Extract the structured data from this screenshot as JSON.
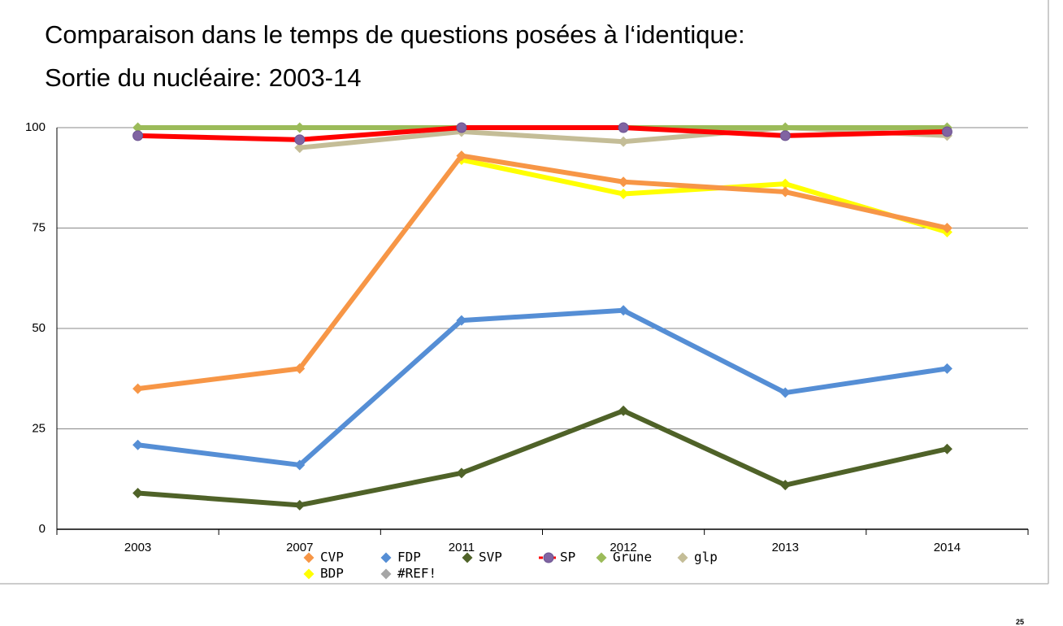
{
  "title": "Comparaison dans le temps  de questions posées à l‘identique:",
  "subtitle": "Sortie du nucléaire: 2003-14",
  "page_number": "25",
  "chart_data": {
    "type": "line",
    "categories": [
      "2003",
      "2007",
      "2011",
      "2012",
      "2013",
      "2014"
    ],
    "ylim": [
      0,
      100
    ],
    "yticks": [
      0,
      25,
      50,
      75,
      100
    ],
    "grid": true,
    "series": [
      {
        "name": "CVP",
        "color": "#f79646",
        "marker": "diamond",
        "values": [
          35,
          40,
          93,
          86.5,
          84,
          75
        ]
      },
      {
        "name": "FDP",
        "color": "#558ed5",
        "marker": "diamond",
        "values": [
          21,
          16,
          52,
          54.5,
          34,
          40
        ]
      },
      {
        "name": "SVP",
        "color": "#4f6228",
        "marker": "diamond",
        "values": [
          9,
          6,
          14,
          29.5,
          11,
          20
        ]
      },
      {
        "name": "SP",
        "color": "#ff0000",
        "marker": "circle",
        "values": [
          98,
          97,
          100,
          100,
          98,
          99
        ]
      },
      {
        "name": "Grune",
        "color": "#9bbb59",
        "marker": "diamond",
        "values": [
          100,
          100,
          100,
          100,
          100,
          100
        ]
      },
      {
        "name": "glp",
        "color": "#c4bd97",
        "marker": "diamond",
        "values": [
          null,
          95,
          99,
          96.5,
          100,
          98
        ]
      },
      {
        "name": "BDP",
        "color": "#ffff00",
        "marker": "diamond",
        "values": [
          null,
          null,
          92,
          83.5,
          86,
          74
        ]
      },
      {
        "name": "#REF!",
        "color": "#a6a6a6",
        "marker": "diamond",
        "values": [
          null,
          null,
          null,
          null,
          null,
          null
        ]
      }
    ]
  }
}
